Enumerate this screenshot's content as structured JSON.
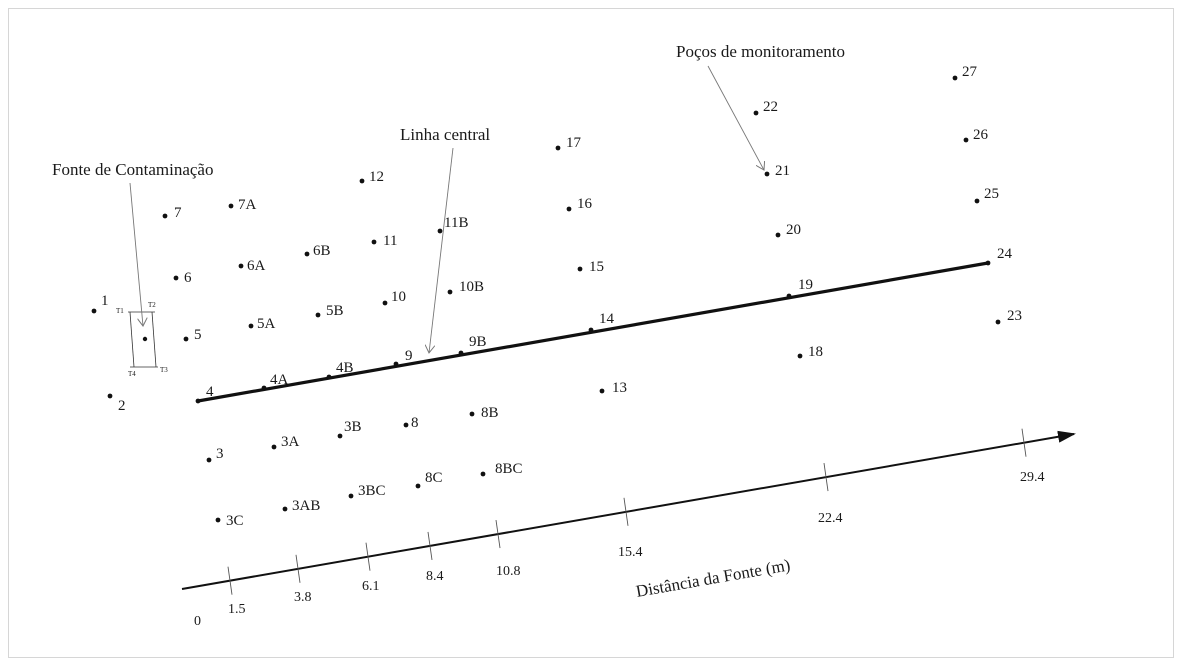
{
  "annotations": {
    "source": "Fonte de Contaminação",
    "centerline": "Linha central",
    "wells": "Poços de monitoramento"
  },
  "axis": {
    "title": "Distância da Fonte (m)",
    "ticks": [
      "0",
      "1.5",
      "3.8",
      "6.1",
      "8.4",
      "10.8",
      "15.4",
      "22.4",
      "29.4"
    ]
  },
  "source_corners": [
    "T1",
    "T2",
    "T3",
    "T4"
  ],
  "wells": [
    "1",
    "2",
    "3",
    "3A",
    "3AB",
    "3B",
    "3BC",
    "3C",
    "4",
    "4A",
    "4B",
    "5",
    "5A",
    "5B",
    "6",
    "6A",
    "6B",
    "7",
    "7A",
    "8",
    "8B",
    "8BC",
    "8C",
    "9",
    "9B",
    "10",
    "10B",
    "11",
    "11B",
    "12",
    "13",
    "14",
    "15",
    "16",
    "17",
    "18",
    "19",
    "20",
    "21",
    "22",
    "23",
    "24",
    "25",
    "26",
    "27"
  ]
}
